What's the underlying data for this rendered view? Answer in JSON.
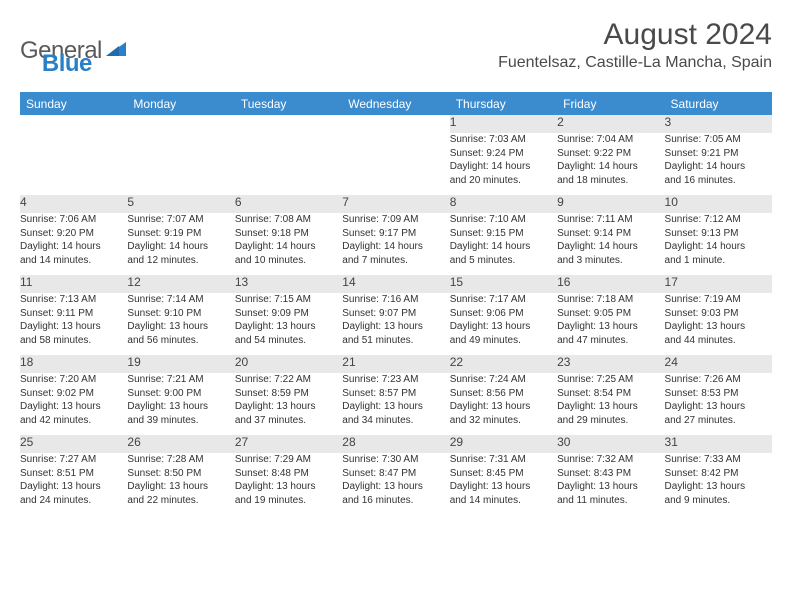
{
  "logo": {
    "text_a": "General",
    "text_b": "Blue"
  },
  "title": "August 2024",
  "location": "Fuentelsaz, Castille-La Mancha, Spain",
  "colors": {
    "header_bg": "#3b8bcf",
    "header_text": "#ffffff",
    "daynum_bg": "#e8e8e8",
    "text": "#333333",
    "rule": "#3b8bcf",
    "logo_gray": "#5a5a5a",
    "logo_blue": "#2a7fc9",
    "page_bg": "#ffffff"
  },
  "typography": {
    "body_pt": 10,
    "header_pt": 12,
    "title_pt": 30,
    "location_pt": 16
  },
  "days_of_week": [
    "Sunday",
    "Monday",
    "Tuesday",
    "Wednesday",
    "Thursday",
    "Friday",
    "Saturday"
  ],
  "weeks": [
    [
      null,
      null,
      null,
      null,
      {
        "n": "1",
        "sr": "Sunrise: 7:03 AM",
        "ss": "Sunset: 9:24 PM",
        "d1": "Daylight: 14 hours",
        "d2": "and 20 minutes."
      },
      {
        "n": "2",
        "sr": "Sunrise: 7:04 AM",
        "ss": "Sunset: 9:22 PM",
        "d1": "Daylight: 14 hours",
        "d2": "and 18 minutes."
      },
      {
        "n": "3",
        "sr": "Sunrise: 7:05 AM",
        "ss": "Sunset: 9:21 PM",
        "d1": "Daylight: 14 hours",
        "d2": "and 16 minutes."
      }
    ],
    [
      {
        "n": "4",
        "sr": "Sunrise: 7:06 AM",
        "ss": "Sunset: 9:20 PM",
        "d1": "Daylight: 14 hours",
        "d2": "and 14 minutes."
      },
      {
        "n": "5",
        "sr": "Sunrise: 7:07 AM",
        "ss": "Sunset: 9:19 PM",
        "d1": "Daylight: 14 hours",
        "d2": "and 12 minutes."
      },
      {
        "n": "6",
        "sr": "Sunrise: 7:08 AM",
        "ss": "Sunset: 9:18 PM",
        "d1": "Daylight: 14 hours",
        "d2": "and 10 minutes."
      },
      {
        "n": "7",
        "sr": "Sunrise: 7:09 AM",
        "ss": "Sunset: 9:17 PM",
        "d1": "Daylight: 14 hours",
        "d2": "and 7 minutes."
      },
      {
        "n": "8",
        "sr": "Sunrise: 7:10 AM",
        "ss": "Sunset: 9:15 PM",
        "d1": "Daylight: 14 hours",
        "d2": "and 5 minutes."
      },
      {
        "n": "9",
        "sr": "Sunrise: 7:11 AM",
        "ss": "Sunset: 9:14 PM",
        "d1": "Daylight: 14 hours",
        "d2": "and 3 minutes."
      },
      {
        "n": "10",
        "sr": "Sunrise: 7:12 AM",
        "ss": "Sunset: 9:13 PM",
        "d1": "Daylight: 14 hours",
        "d2": "and 1 minute."
      }
    ],
    [
      {
        "n": "11",
        "sr": "Sunrise: 7:13 AM",
        "ss": "Sunset: 9:11 PM",
        "d1": "Daylight: 13 hours",
        "d2": "and 58 minutes."
      },
      {
        "n": "12",
        "sr": "Sunrise: 7:14 AM",
        "ss": "Sunset: 9:10 PM",
        "d1": "Daylight: 13 hours",
        "d2": "and 56 minutes."
      },
      {
        "n": "13",
        "sr": "Sunrise: 7:15 AM",
        "ss": "Sunset: 9:09 PM",
        "d1": "Daylight: 13 hours",
        "d2": "and 54 minutes."
      },
      {
        "n": "14",
        "sr": "Sunrise: 7:16 AM",
        "ss": "Sunset: 9:07 PM",
        "d1": "Daylight: 13 hours",
        "d2": "and 51 minutes."
      },
      {
        "n": "15",
        "sr": "Sunrise: 7:17 AM",
        "ss": "Sunset: 9:06 PM",
        "d1": "Daylight: 13 hours",
        "d2": "and 49 minutes."
      },
      {
        "n": "16",
        "sr": "Sunrise: 7:18 AM",
        "ss": "Sunset: 9:05 PM",
        "d1": "Daylight: 13 hours",
        "d2": "and 47 minutes."
      },
      {
        "n": "17",
        "sr": "Sunrise: 7:19 AM",
        "ss": "Sunset: 9:03 PM",
        "d1": "Daylight: 13 hours",
        "d2": "and 44 minutes."
      }
    ],
    [
      {
        "n": "18",
        "sr": "Sunrise: 7:20 AM",
        "ss": "Sunset: 9:02 PM",
        "d1": "Daylight: 13 hours",
        "d2": "and 42 minutes."
      },
      {
        "n": "19",
        "sr": "Sunrise: 7:21 AM",
        "ss": "Sunset: 9:00 PM",
        "d1": "Daylight: 13 hours",
        "d2": "and 39 minutes."
      },
      {
        "n": "20",
        "sr": "Sunrise: 7:22 AM",
        "ss": "Sunset: 8:59 PM",
        "d1": "Daylight: 13 hours",
        "d2": "and 37 minutes."
      },
      {
        "n": "21",
        "sr": "Sunrise: 7:23 AM",
        "ss": "Sunset: 8:57 PM",
        "d1": "Daylight: 13 hours",
        "d2": "and 34 minutes."
      },
      {
        "n": "22",
        "sr": "Sunrise: 7:24 AM",
        "ss": "Sunset: 8:56 PM",
        "d1": "Daylight: 13 hours",
        "d2": "and 32 minutes."
      },
      {
        "n": "23",
        "sr": "Sunrise: 7:25 AM",
        "ss": "Sunset: 8:54 PM",
        "d1": "Daylight: 13 hours",
        "d2": "and 29 minutes."
      },
      {
        "n": "24",
        "sr": "Sunrise: 7:26 AM",
        "ss": "Sunset: 8:53 PM",
        "d1": "Daylight: 13 hours",
        "d2": "and 27 minutes."
      }
    ],
    [
      {
        "n": "25",
        "sr": "Sunrise: 7:27 AM",
        "ss": "Sunset: 8:51 PM",
        "d1": "Daylight: 13 hours",
        "d2": "and 24 minutes."
      },
      {
        "n": "26",
        "sr": "Sunrise: 7:28 AM",
        "ss": "Sunset: 8:50 PM",
        "d1": "Daylight: 13 hours",
        "d2": "and 22 minutes."
      },
      {
        "n": "27",
        "sr": "Sunrise: 7:29 AM",
        "ss": "Sunset: 8:48 PM",
        "d1": "Daylight: 13 hours",
        "d2": "and 19 minutes."
      },
      {
        "n": "28",
        "sr": "Sunrise: 7:30 AM",
        "ss": "Sunset: 8:47 PM",
        "d1": "Daylight: 13 hours",
        "d2": "and 16 minutes."
      },
      {
        "n": "29",
        "sr": "Sunrise: 7:31 AM",
        "ss": "Sunset: 8:45 PM",
        "d1": "Daylight: 13 hours",
        "d2": "and 14 minutes."
      },
      {
        "n": "30",
        "sr": "Sunrise: 7:32 AM",
        "ss": "Sunset: 8:43 PM",
        "d1": "Daylight: 13 hours",
        "d2": "and 11 minutes."
      },
      {
        "n": "31",
        "sr": "Sunrise: 7:33 AM",
        "ss": "Sunset: 8:42 PM",
        "d1": "Daylight: 13 hours",
        "d2": "and 9 minutes."
      }
    ]
  ]
}
